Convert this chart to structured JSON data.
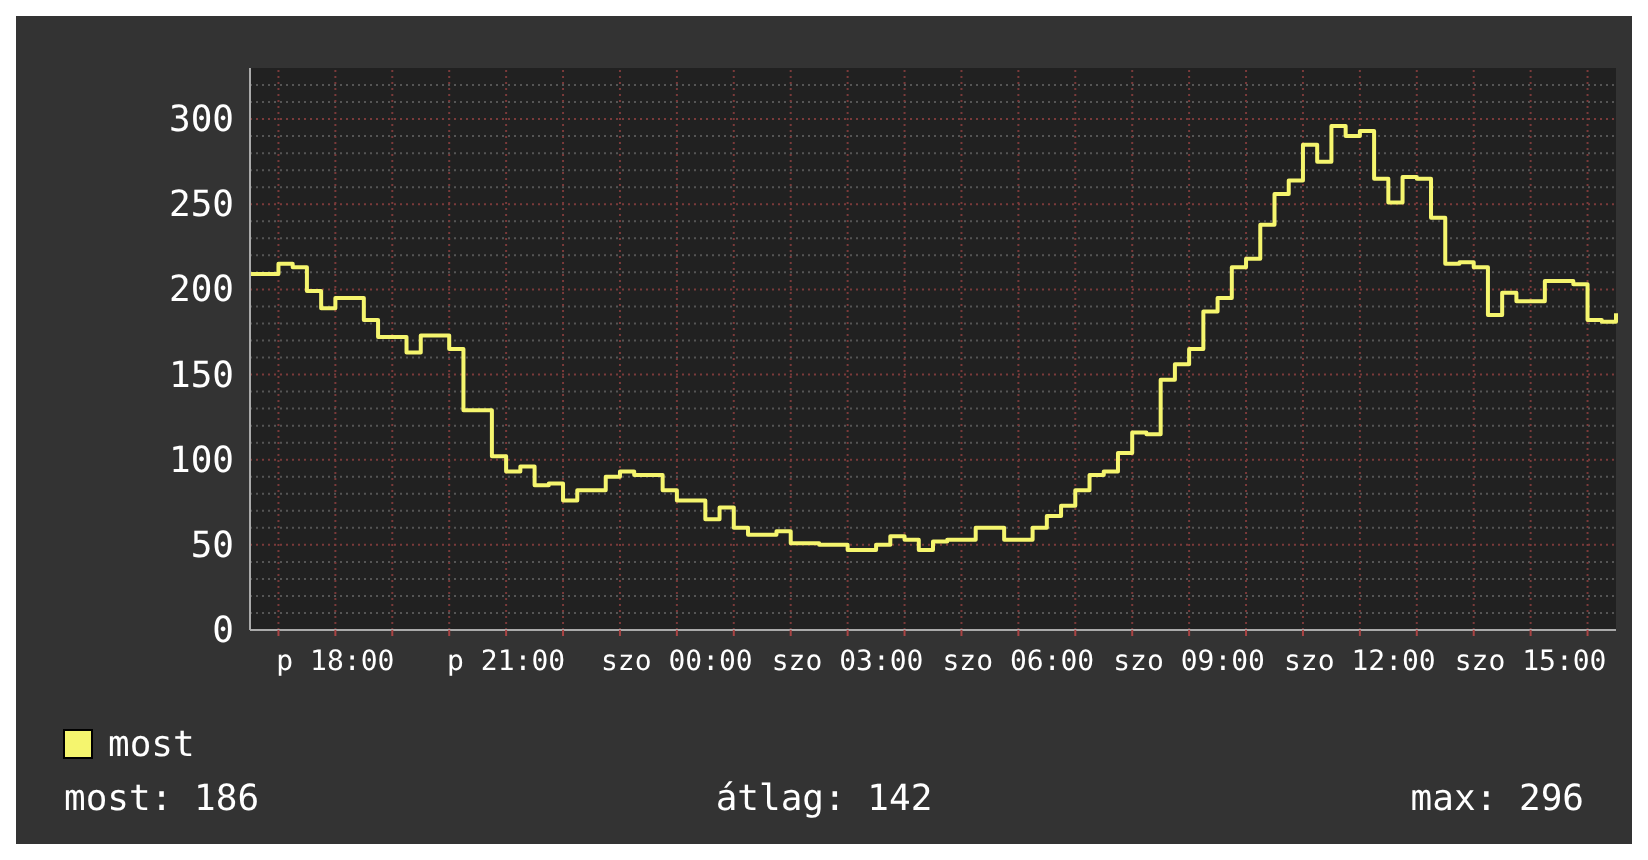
{
  "chart_data": {
    "type": "step",
    "ylim": [
      0,
      330
    ],
    "categories": [
      null,
      null,
      null,
      null,
      null,
      null,
      "p 18:00",
      null,
      null,
      null,
      null,
      null,
      null,
      null,
      null,
      null,
      null,
      null,
      "p 21:00",
      null,
      null,
      null,
      null,
      null,
      null,
      null,
      null,
      null,
      null,
      null,
      "szo 00:00",
      null,
      null,
      null,
      null,
      null,
      null,
      null,
      null,
      null,
      null,
      null,
      "szo 03:00",
      null,
      null,
      null,
      null,
      null,
      null,
      null,
      null,
      null,
      null,
      null,
      "szo 06:00",
      null,
      null,
      null,
      null,
      null,
      null,
      null,
      null,
      null,
      null,
      null,
      "szo 09:00",
      null,
      null,
      null,
      null,
      null,
      null,
      null,
      null,
      null,
      null,
      null,
      "szo 12:00",
      null,
      null,
      null,
      null,
      null,
      null,
      null,
      null,
      null,
      null,
      null,
      "szo 15:00",
      null,
      null,
      null,
      null,
      null,
      null
    ],
    "yticks": [
      0,
      {
        "value": 10,
        "label": null
      },
      {
        "value": 20,
        "label": null
      },
      {
        "value": 30,
        "label": null
      },
      {
        "value": 40,
        "label": null
      },
      50,
      {
        "value": 60,
        "label": null
      },
      {
        "value": 70,
        "label": null
      },
      {
        "value": 80,
        "label": null
      },
      {
        "value": 90,
        "label": null
      },
      100,
      {
        "value": 110,
        "label": null
      },
      {
        "value": 120,
        "label": null
      },
      {
        "value": 130,
        "label": null
      },
      {
        "value": 140,
        "label": null
      },
      150,
      {
        "value": 160,
        "label": null
      },
      {
        "value": 170,
        "label": null
      },
      {
        "value": 180,
        "label": null
      },
      {
        "value": 190,
        "label": null
      },
      200,
      {
        "value": 210,
        "label": null
      },
      {
        "value": 220,
        "label": null
      },
      {
        "value": 230,
        "label": null
      },
      {
        "value": 240,
        "label": null
      },
      250,
      {
        "value": 260,
        "label": null
      },
      {
        "value": 270,
        "label": null
      },
      {
        "value": 280,
        "label": null
      },
      {
        "value": 290,
        "label": null
      },
      300,
      {
        "value": 310,
        "label": null
      },
      {
        "value": 320,
        "label": null
      }
    ],
    "grid": true,
    "legend": "bottom",
    "series": [
      {
        "name": "most",
        "color": "#f5f56e",
        "values": [
          209,
          209,
          215,
          213,
          199,
          189,
          195,
          195,
          182,
          172,
          172,
          163,
          173,
          173,
          165,
          129,
          129,
          102,
          93,
          96,
          85,
          86,
          76,
          82,
          82,
          90,
          93,
          91,
          91,
          82,
          76,
          76,
          65,
          72,
          60,
          56,
          56,
          58,
          51,
          51,
          50,
          50,
          47,
          47,
          50,
          55,
          53,
          47,
          52,
          53,
          53,
          60,
          60,
          53,
          53,
          60,
          67,
          73,
          82,
          91,
          93,
          104,
          116,
          115,
          147,
          156,
          165,
          187,
          195,
          213,
          218,
          238,
          256,
          264,
          285,
          275,
          296,
          290,
          293,
          265,
          251,
          266,
          265,
          242,
          215,
          216,
          213,
          185,
          198,
          193,
          193,
          205,
          205,
          203,
          182,
          181,
          186
        ]
      }
    ],
    "annotations": [
      "most: 186",
      "átlag: 142",
      "max: 296"
    ]
  }
}
